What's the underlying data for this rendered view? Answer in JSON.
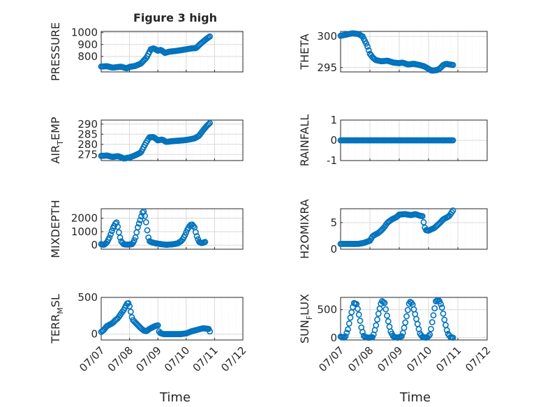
{
  "title": "Figure 3 high",
  "color": "#0072BD",
  "xlabel": "Time",
  "x_ticks": [
    "07/07",
    "07/08",
    "07/09",
    "07/10",
    "07/11",
    "07/12"
  ],
  "x_range": [
    "07/07",
    "07/12"
  ],
  "chart_data": [
    {
      "type": "scatter",
      "marker": "open-circle",
      "position": "row1-left",
      "ylabel": "PRESSURE",
      "ylim": [
        670,
        1010
      ],
      "yticks": [
        800,
        900,
        1000
      ],
      "ytick_labels": [
        "800",
        "900",
        "1000"
      ],
      "x": [
        "07/07",
        "07/07",
        "07/07",
        "07/07",
        "07/08",
        "07/08",
        "07/08",
        "07/08",
        "07/09",
        "07/09",
        "07/09",
        "07/09",
        "07/10",
        "07/10",
        "07/10",
        "07/10",
        "07/11"
      ],
      "x_fraction_of_day": [
        0.0,
        0.25,
        0.5,
        0.75,
        0.0,
        0.25,
        0.5,
        0.75,
        0.0,
        0.25,
        0.5,
        0.75,
        0.0,
        0.25,
        0.5,
        0.75,
        0.0
      ],
      "keypoints": [
        [
          0.0,
          715
        ],
        [
          0.2,
          718
        ],
        [
          0.4,
          706
        ],
        [
          0.7,
          714
        ],
        [
          0.9,
          700
        ],
        [
          1.0,
          712
        ],
        [
          1.2,
          720
        ],
        [
          1.4,
          740
        ],
        [
          1.6,
          790
        ],
        [
          1.75,
          860
        ],
        [
          1.85,
          868
        ],
        [
          2.0,
          848
        ],
        [
          2.1,
          856
        ],
        [
          2.25,
          830
        ],
        [
          2.4,
          840
        ],
        [
          2.6,
          845
        ],
        [
          2.8,
          852
        ],
        [
          3.0,
          860
        ],
        [
          3.2,
          868
        ],
        [
          3.35,
          870
        ],
        [
          3.5,
          905
        ],
        [
          3.7,
          945
        ],
        [
          3.85,
          970
        ]
      ]
    },
    {
      "type": "scatter",
      "marker": "open-circle",
      "position": "row1-right",
      "ylabel": "THETA",
      "ylim": [
        294.3,
        300.8
      ],
      "yticks": [
        295,
        300
      ],
      "ytick_labels": [
        "295",
        "300"
      ],
      "keypoints": [
        [
          0.0,
          300.1
        ],
        [
          0.2,
          300.3
        ],
        [
          0.4,
          300.5
        ],
        [
          0.6,
          300.4
        ],
        [
          0.75,
          300.0
        ],
        [
          0.9,
          298.6
        ],
        [
          1.0,
          297.2
        ],
        [
          1.1,
          296.6
        ],
        [
          1.2,
          296.2
        ],
        [
          1.4,
          296.0
        ],
        [
          1.6,
          296.1
        ],
        [
          1.8,
          295.8
        ],
        [
          2.0,
          295.7
        ],
        [
          2.1,
          295.8
        ],
        [
          2.3,
          295.5
        ],
        [
          2.5,
          295.6
        ],
        [
          2.7,
          295.4
        ],
        [
          2.85,
          295.2
        ],
        [
          3.0,
          294.8
        ],
        [
          3.1,
          294.5
        ],
        [
          3.3,
          294.6
        ],
        [
          3.4,
          294.9
        ],
        [
          3.5,
          295.4
        ],
        [
          3.6,
          295.6
        ],
        [
          3.85,
          295.4
        ]
      ]
    },
    {
      "type": "scatter",
      "marker": "open-circle",
      "position": "row2-left",
      "ylabel": "AIR_TEMP",
      "ylabel_parts": [
        "AIR",
        "T",
        "EMP"
      ],
      "ylim": [
        272,
        292
      ],
      "yticks": [
        275,
        280,
        285,
        290
      ],
      "ytick_labels": [
        "275",
        "280",
        "285",
        "290"
      ],
      "keypoints": [
        [
          0.0,
          274.3
        ],
        [
          0.2,
          274.5
        ],
        [
          0.4,
          273.8
        ],
        [
          0.6,
          274.2
        ],
        [
          0.8,
          273.0
        ],
        [
          1.0,
          273.5
        ],
        [
          1.2,
          274.6
        ],
        [
          1.4,
          276.0
        ],
        [
          1.55,
          280.0
        ],
        [
          1.7,
          283.5
        ],
        [
          1.85,
          283.6
        ],
        [
          2.0,
          282.0
        ],
        [
          2.15,
          282.4
        ],
        [
          2.3,
          281.2
        ],
        [
          2.5,
          281.6
        ],
        [
          2.7,
          281.8
        ],
        [
          2.9,
          282.0
        ],
        [
          3.1,
          282.4
        ],
        [
          3.3,
          283.0
        ],
        [
          3.45,
          284.2
        ],
        [
          3.6,
          287.0
        ],
        [
          3.75,
          289.5
        ],
        [
          3.87,
          291.0
        ]
      ]
    },
    {
      "type": "scatter",
      "marker": "open-circle",
      "position": "row2-right",
      "ylabel": "RAINFALL",
      "ylim": [
        -1,
        1
      ],
      "yticks": [
        -1,
        0,
        1
      ],
      "ytick_labels": [
        "-1",
        "0",
        "1"
      ],
      "keypoints": [
        [
          0.0,
          0
        ],
        [
          3.85,
          0
        ]
      ]
    },
    {
      "type": "scatter",
      "marker": "open-circle",
      "position": "row3-left",
      "ylabel": "MIXDEPTH",
      "ylim": [
        -300,
        2700
      ],
      "yticks": [
        0,
        1000,
        2000
      ],
      "ytick_labels": [
        "0",
        "1000",
        "2000"
      ],
      "keypoints": [
        [
          0.0,
          80
        ],
        [
          0.1,
          20
        ],
        [
          0.2,
          200
        ],
        [
          0.3,
          600
        ],
        [
          0.4,
          1200
        ],
        [
          0.5,
          1600
        ],
        [
          0.55,
          1700
        ],
        [
          0.6,
          1200
        ],
        [
          0.65,
          700
        ],
        [
          0.7,
          300
        ],
        [
          0.8,
          60
        ],
        [
          0.95,
          40
        ],
        [
          1.1,
          80
        ],
        [
          1.2,
          500
        ],
        [
          1.3,
          1400
        ],
        [
          1.4,
          2000
        ],
        [
          1.45,
          2400
        ],
        [
          1.5,
          2500
        ],
        [
          1.55,
          2100
        ],
        [
          1.6,
          1500
        ],
        [
          1.65,
          700
        ],
        [
          1.7,
          300
        ],
        [
          1.8,
          200
        ],
        [
          1.9,
          150
        ],
        [
          2.1,
          80
        ],
        [
          2.3,
          30
        ],
        [
          2.5,
          60
        ],
        [
          2.7,
          130
        ],
        [
          2.85,
          350
        ],
        [
          2.95,
          700
        ],
        [
          3.05,
          1200
        ],
        [
          3.15,
          1500
        ],
        [
          3.2,
          1550
        ],
        [
          3.3,
          1300
        ],
        [
          3.35,
          800
        ],
        [
          3.45,
          250
        ],
        [
          3.55,
          150
        ],
        [
          3.65,
          220
        ],
        [
          3.7,
          280
        ]
      ]
    },
    {
      "type": "scatter",
      "marker": "open-circle",
      "position": "row3-right",
      "ylabel": "H2OMIXRA",
      "ylim": [
        0,
        7.6
      ],
      "yticks": [
        0,
        5
      ],
      "ytick_labels": [
        "0",
        "5"
      ],
      "keypoints": [
        [
          0.0,
          1.0
        ],
        [
          0.3,
          1.0
        ],
        [
          0.6,
          1.0
        ],
        [
          0.8,
          1.2
        ],
        [
          1.0,
          1.6
        ],
        [
          1.1,
          2.5
        ],
        [
          1.2,
          2.8
        ],
        [
          1.3,
          3.1
        ],
        [
          1.4,
          3.6
        ],
        [
          1.5,
          4.2
        ],
        [
          1.6,
          5.0
        ],
        [
          1.75,
          5.6
        ],
        [
          1.9,
          6.0
        ],
        [
          2.0,
          6.5
        ],
        [
          2.2,
          6.6
        ],
        [
          2.4,
          6.4
        ],
        [
          2.55,
          6.6
        ],
        [
          2.7,
          6.3
        ],
        [
          2.8,
          6.2
        ],
        [
          2.85,
          4.5
        ],
        [
          2.9,
          3.6
        ],
        [
          3.0,
          3.5
        ],
        [
          3.2,
          4.0
        ],
        [
          3.4,
          5.0
        ],
        [
          3.5,
          5.6
        ],
        [
          3.7,
          6.2
        ],
        [
          3.85,
          7.4
        ]
      ]
    },
    {
      "type": "scatter",
      "marker": "open-circle",
      "position": "row4-left",
      "ylabel": "TERR_MSL",
      "ylabel_parts": [
        "TERR",
        "M",
        "SL"
      ],
      "ylim": [
        -80,
        500
      ],
      "yticks": [
        0,
        500
      ],
      "ytick_labels": [
        "0",
        "500"
      ],
      "keypoints": [
        [
          0.0,
          30
        ],
        [
          0.1,
          60
        ],
        [
          0.2,
          110
        ],
        [
          0.3,
          130
        ],
        [
          0.4,
          150
        ],
        [
          0.5,
          190
        ],
        [
          0.6,
          220
        ],
        [
          0.7,
          280
        ],
        [
          0.8,
          330
        ],
        [
          0.9,
          410
        ],
        [
          0.95,
          430
        ],
        [
          1.0,
          380
        ],
        [
          1.1,
          200
        ],
        [
          1.2,
          160
        ],
        [
          1.3,
          120
        ],
        [
          1.4,
          80
        ],
        [
          1.5,
          50
        ],
        [
          1.6,
          40
        ],
        [
          1.7,
          70
        ],
        [
          1.8,
          90
        ],
        [
          1.9,
          110
        ],
        [
          2.0,
          120
        ],
        [
          2.05,
          20
        ],
        [
          2.2,
          0
        ],
        [
          2.5,
          0
        ],
        [
          2.8,
          0
        ],
        [
          3.0,
          10
        ],
        [
          3.2,
          40
        ],
        [
          3.4,
          60
        ],
        [
          3.6,
          80
        ],
        [
          3.8,
          70
        ],
        [
          3.85,
          20
        ]
      ]
    },
    {
      "type": "scatter",
      "marker": "open-circle",
      "position": "row4-right",
      "ylabel": "SUN_FLUX",
      "ylabel_parts": [
        "SUN",
        "F",
        "LUX"
      ],
      "ylim": [
        -40,
        720
      ],
      "yticks": [
        0,
        500
      ],
      "ytick_labels": [
        "0",
        "500"
      ],
      "keypoints": [
        [
          0.0,
          20
        ],
        [
          0.15,
          0
        ],
        [
          0.25,
          150
        ],
        [
          0.35,
          400
        ],
        [
          0.45,
          620
        ],
        [
          0.55,
          600
        ],
        [
          0.65,
          350
        ],
        [
          0.72,
          150
        ],
        [
          0.8,
          20
        ],
        [
          0.95,
          0
        ],
        [
          1.1,
          10
        ],
        [
          1.2,
          200
        ],
        [
          1.3,
          450
        ],
        [
          1.4,
          660
        ],
        [
          1.5,
          620
        ],
        [
          1.6,
          350
        ],
        [
          1.7,
          120
        ],
        [
          1.8,
          20
        ],
        [
          1.95,
          0
        ],
        [
          2.1,
          30
        ],
        [
          2.2,
          250
        ],
        [
          2.35,
          650
        ],
        [
          2.45,
          610
        ],
        [
          2.6,
          300
        ],
        [
          2.7,
          80
        ],
        [
          2.8,
          10
        ],
        [
          2.95,
          0
        ],
        [
          3.05,
          60
        ],
        [
          3.15,
          350
        ],
        [
          3.25,
          650
        ],
        [
          3.35,
          680
        ],
        [
          3.45,
          560
        ],
        [
          3.55,
          300
        ],
        [
          3.65,
          80
        ],
        [
          3.75,
          10
        ],
        [
          3.85,
          0
        ]
      ]
    }
  ]
}
